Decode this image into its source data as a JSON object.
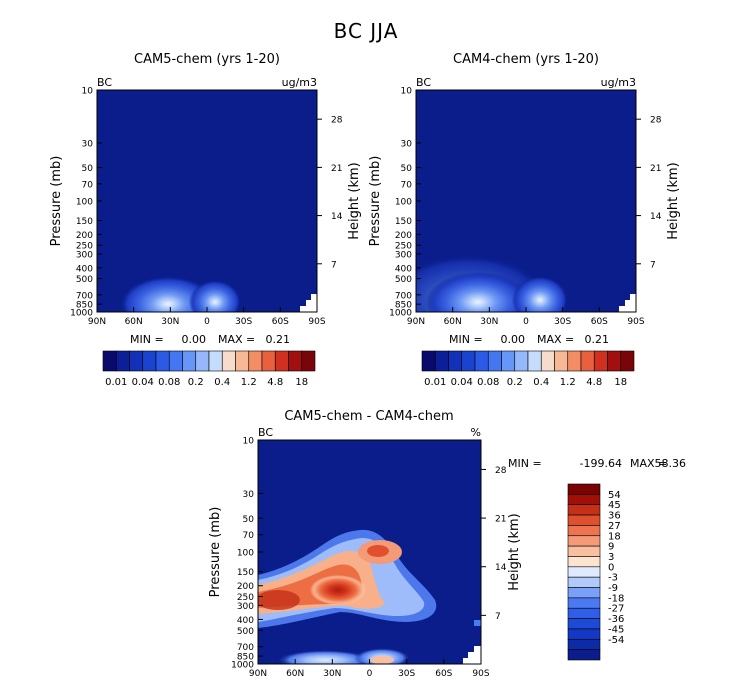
{
  "figure": {
    "title": "BC JJA",
    "colors": {
      "field_background": "#0a1d8a",
      "top_colorbar": [
        "#0a0a6e",
        "#0c1e98",
        "#1230b8",
        "#1a44d0",
        "#2a5ae6",
        "#4476f2",
        "#6696f7",
        "#94b8fa",
        "#c6dcfd",
        "#f6dccb",
        "#f7b896",
        "#f48c64",
        "#e8603e",
        "#d03020",
        "#a01010",
        "#7a0508"
      ],
      "diff_colorbar": [
        "#0a1d8a",
        "#0c2ba6",
        "#1238c4",
        "#1e4ad8",
        "#2f5fe8",
        "#4a7af2",
        "#7aa0f8",
        "#b0cafc",
        "#deeafe",
        "#fde4d0",
        "#f8c0a0",
        "#f49a76",
        "#ee7450",
        "#e0502e",
        "#c63018",
        "#a01008",
        "#7a0404"
      ]
    }
  },
  "chart_data": [
    {
      "type": "heatmap",
      "title": "CAM5-chem (yrs 1-20)",
      "left_label": "BC",
      "units": "ug/m3",
      "xlabel": "",
      "ylabel": "Pressure (mb)",
      "ylabel_right": "Height (km)",
      "x_ticks": [
        "90N",
        "60N",
        "30N",
        "0",
        "30S",
        "60S",
        "90S"
      ],
      "x_values": [
        90,
        60,
        30,
        0,
        -30,
        -60,
        -90
      ],
      "y_ticks": [
        "10",
        "30",
        "50",
        "70",
        "100",
        "150",
        "200",
        "250",
        "300",
        "400",
        "500",
        "700",
        "850",
        "1000"
      ],
      "y_values": [
        10,
        30,
        50,
        70,
        100,
        150,
        200,
        250,
        300,
        400,
        500,
        700,
        850,
        1000
      ],
      "height_ticks": [
        "28",
        "21",
        "14",
        "7"
      ],
      "height_values": [
        28,
        21,
        14,
        7
      ],
      "stats": {
        "min_label": "MIN =",
        "min": "0.00",
        "max_label": "MAX =",
        "max": "0.21"
      },
      "colorbar_labels": [
        "0.01",
        "0.04",
        "0.08",
        "0.2",
        "0.4",
        "1.2",
        "4.8",
        "18"
      ],
      "features": [
        {
          "lat": 35,
          "p": 850,
          "level": 0.6
        },
        {
          "lat": -5,
          "p": 750,
          "level": 0.55
        }
      ]
    },
    {
      "type": "heatmap",
      "title": "CAM4-chem (yrs 1-20)",
      "left_label": "BC",
      "units": "ug/m3",
      "xlabel": "",
      "ylabel": "Pressure (mb)",
      "ylabel_right": "Height (km)",
      "x_ticks": [
        "90N",
        "60N",
        "30N",
        "0",
        "30S",
        "60S",
        "90S"
      ],
      "x_values": [
        90,
        60,
        30,
        0,
        -30,
        -60,
        -90
      ],
      "y_ticks": [
        "10",
        "30",
        "50",
        "70",
        "100",
        "150",
        "200",
        "250",
        "300",
        "400",
        "500",
        "700",
        "850",
        "1000"
      ],
      "y_values": [
        10,
        30,
        50,
        70,
        100,
        150,
        200,
        250,
        300,
        400,
        500,
        700,
        850,
        1000
      ],
      "height_ticks": [
        "28",
        "21",
        "14",
        "7"
      ],
      "height_values": [
        28,
        21,
        14,
        7
      ],
      "stats": {
        "min_label": "MIN =",
        "min": "0.00",
        "max_label": "MAX =",
        "max": "0.21"
      },
      "colorbar_labels": [
        "0.01",
        "0.04",
        "0.08",
        "0.2",
        "0.4",
        "1.2",
        "4.8",
        "18"
      ],
      "features": [
        {
          "lat": 35,
          "p": 800,
          "level": 0.65
        },
        {
          "lat": -5,
          "p": 750,
          "level": 0.55
        }
      ]
    },
    {
      "type": "heatmap",
      "title": "CAM5-chem - CAM4-chem",
      "left_label": "BC",
      "units": "%",
      "xlabel": "",
      "ylabel": "Pressure (mb)",
      "ylabel_right": "Height (km)",
      "x_ticks": [
        "90N",
        "60N",
        "30N",
        "0",
        "30S",
        "60S",
        "90S"
      ],
      "x_values": [
        90,
        60,
        30,
        0,
        -30,
        -60,
        -90
      ],
      "y_ticks": [
        "10",
        "30",
        "50",
        "70",
        "100",
        "150",
        "200",
        "250",
        "300",
        "400",
        "500",
        "700",
        "850",
        "1000"
      ],
      "y_values": [
        10,
        30,
        50,
        70,
        100,
        150,
        200,
        250,
        300,
        400,
        500,
        700,
        850,
        1000
      ],
      "height_ticks": [
        "28",
        "21",
        "14",
        "7"
      ],
      "height_values": [
        28,
        21,
        14,
        7
      ],
      "stats": {
        "min_label": "MIN =",
        "min": "-199.64",
        "max_label": "MAX =",
        "max": "58.36"
      },
      "colorbar_labels": [
        "54",
        "45",
        "36",
        "27",
        "18",
        "9",
        "3",
        "0",
        "-3",
        "-9",
        "-18",
        "-27",
        "-36",
        "-45",
        "-54"
      ],
      "colorbar_range": [
        -54,
        54
      ],
      "features": [
        {
          "lat": 20,
          "p": 250,
          "value": 54,
          "desc": "positive maximum near 20-30N, 200-300 mb"
        },
        {
          "lat": 0,
          "p": 100,
          "value": 30,
          "desc": "positive lobe near equator, 100 mb"
        },
        {
          "lat": 90,
          "p": 300,
          "value": 40,
          "desc": "positive band extending to 90N near 300 mb"
        }
      ]
    }
  ]
}
